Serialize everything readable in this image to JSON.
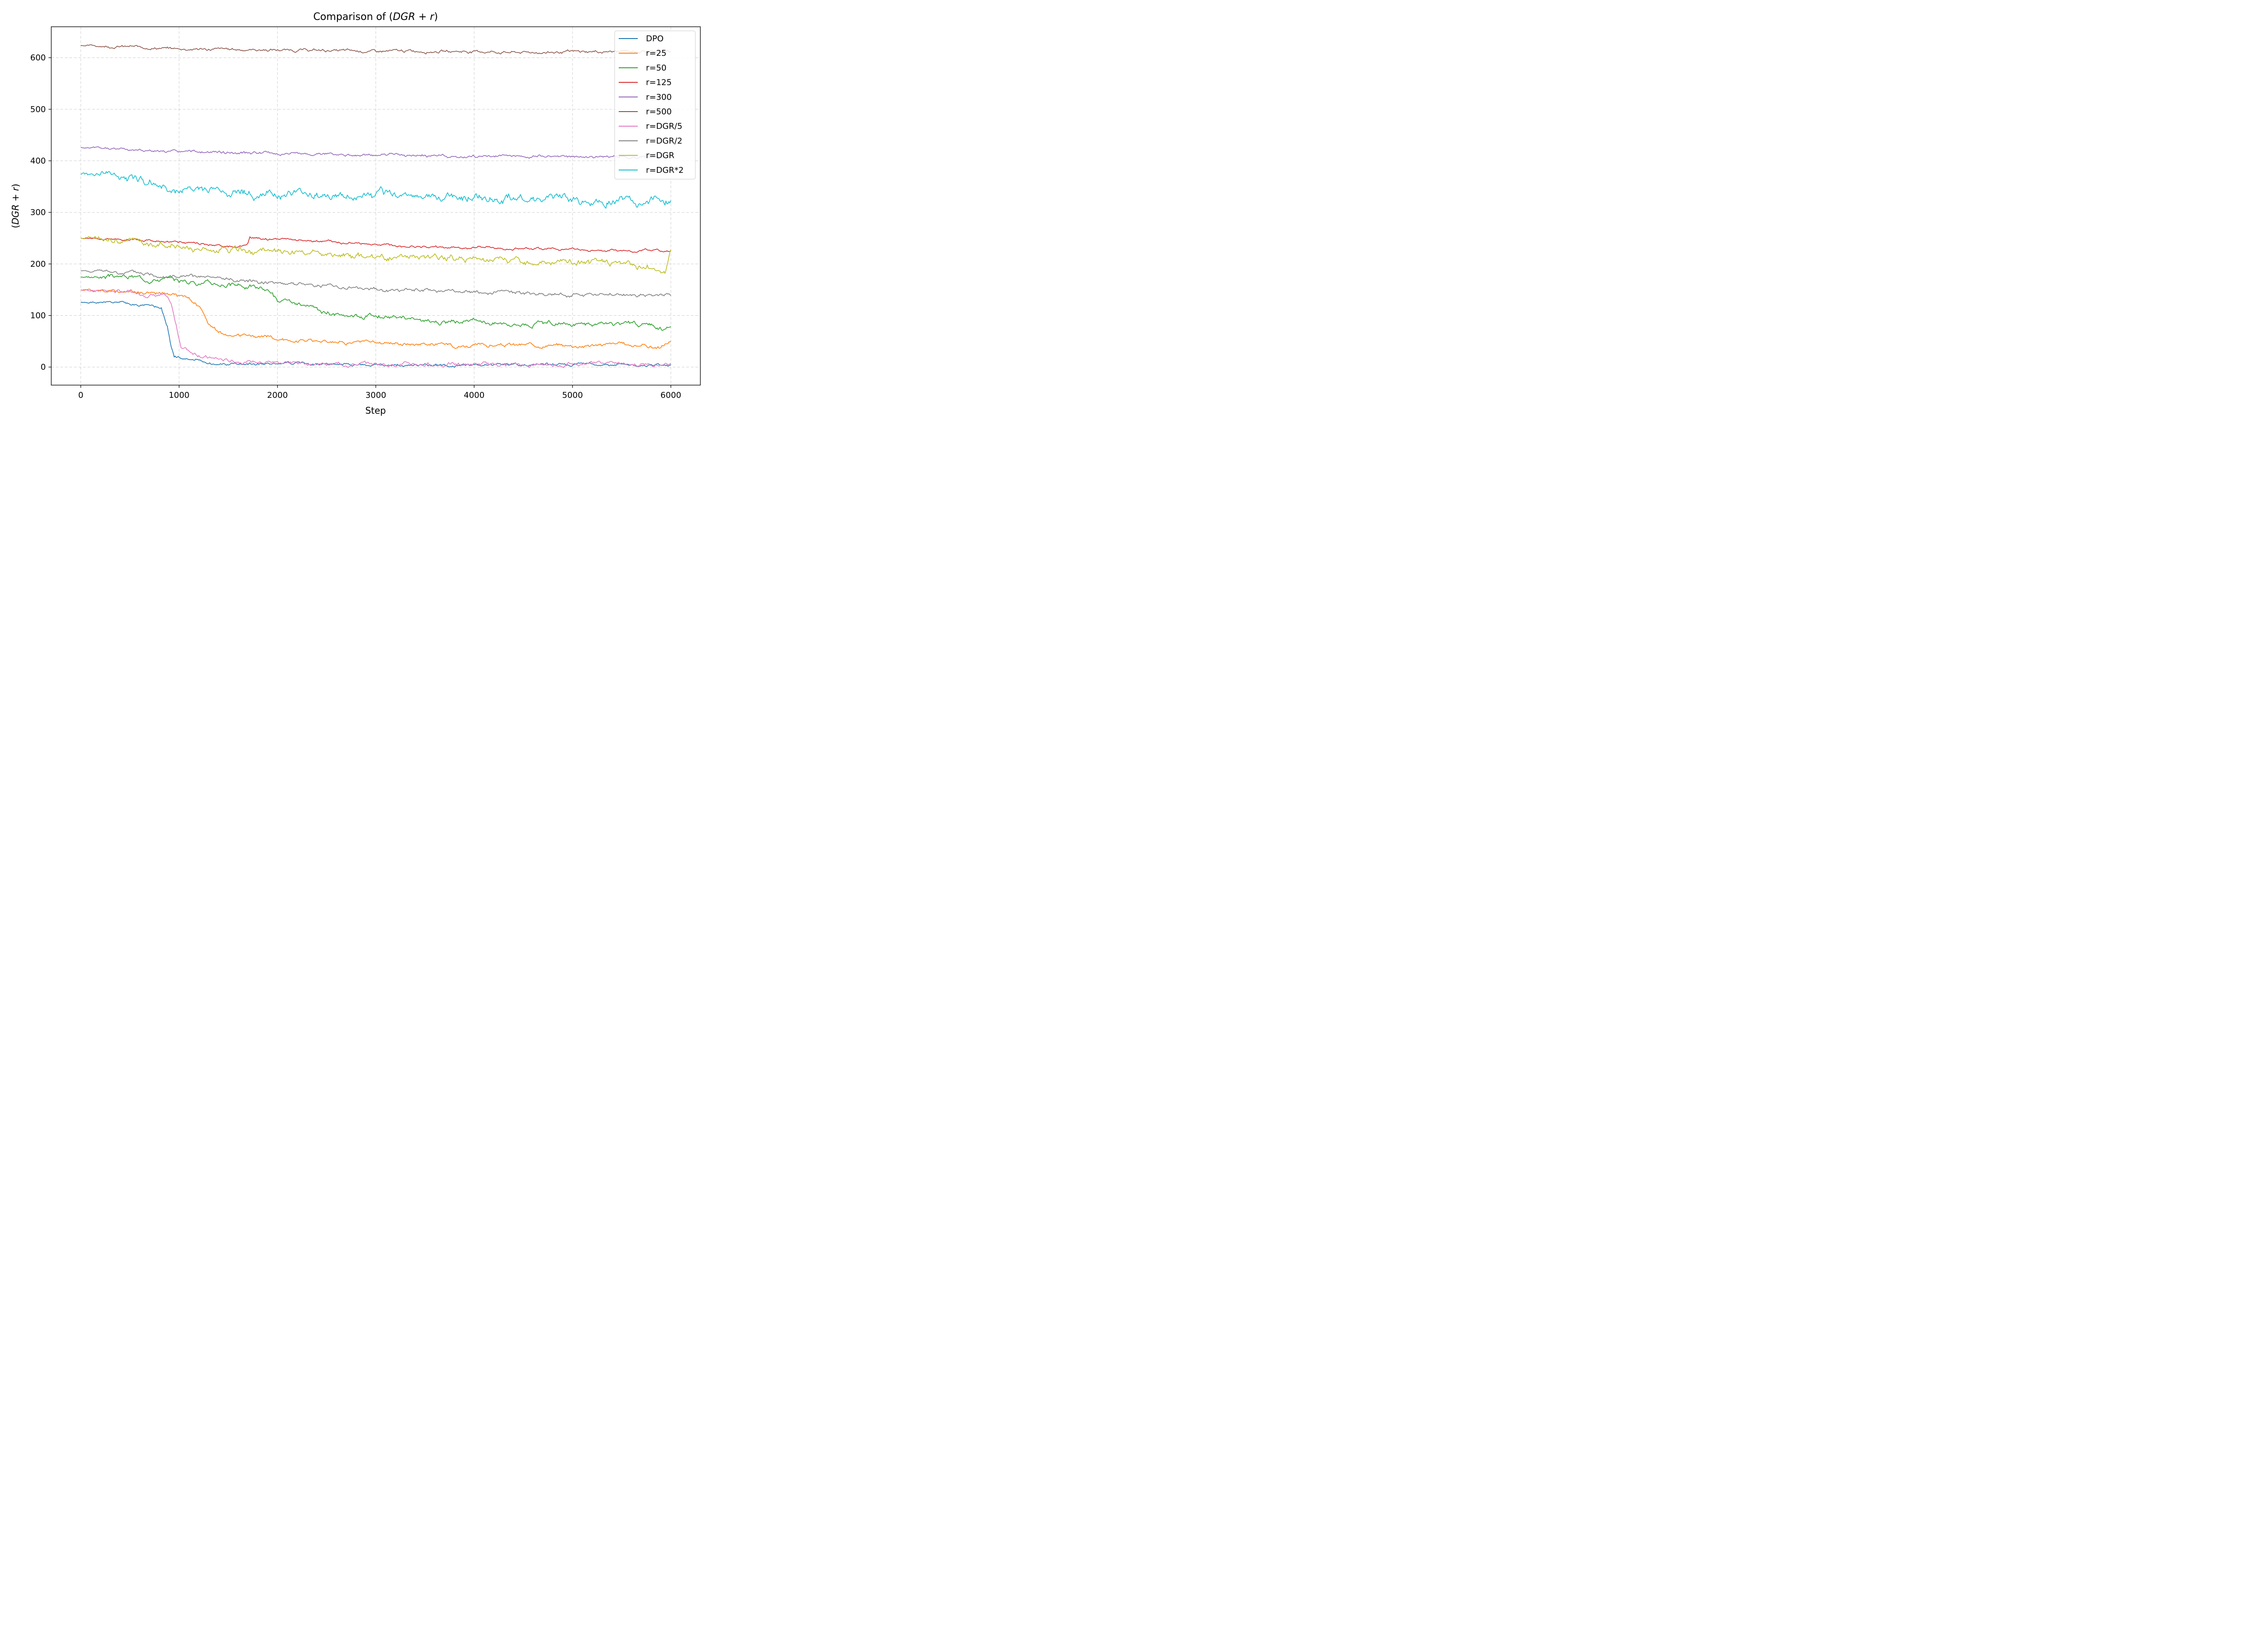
{
  "chart_data": {
    "type": "line",
    "title": "Comparison of (DGR + r)",
    "title_parts": [
      "Comparison of ",
      "(",
      "DGR",
      " + ",
      "r",
      ")"
    ],
    "xlabel": "Step",
    "ylabel_parts": [
      "(",
      "DGR",
      " + ",
      "r",
      ")"
    ],
    "xlim": [
      -300,
      6300
    ],
    "ylim": [
      -35,
      660
    ],
    "xticks": [
      0,
      1000,
      2000,
      3000,
      4000,
      5000,
      6000
    ],
    "yticks": [
      0,
      100,
      200,
      300,
      400,
      500,
      600
    ],
    "grid": true,
    "legend_position": "top-right",
    "series": [
      {
        "name": "DPO",
        "color": "#1f77b4",
        "noise": 3,
        "seed": 1,
        "x": [
          0,
          300,
          500,
          700,
          820,
          880,
          920,
          950,
          1000,
          1100,
          1200,
          1300,
          1500,
          2000,
          2500,
          3000,
          3500,
          4000,
          4500,
          4700,
          5000,
          5200,
          5500,
          6000
        ],
        "y": [
          125,
          124,
          122,
          120,
          112,
          80,
          40,
          20,
          18,
          15,
          12,
          8,
          5,
          8,
          4,
          3,
          3,
          4,
          3,
          6,
          4,
          7,
          4,
          2
        ]
      },
      {
        "name": "r=25",
        "color": "#ff7f0e",
        "noise": 4,
        "seed": 2,
        "x": [
          0,
          500,
          900,
          1100,
          1200,
          1300,
          1400,
          1500,
          1600,
          2000,
          2500,
          3000,
          3500,
          4000,
          4500,
          5000,
          5500,
          5900,
          6000
        ],
        "y": [
          150,
          148,
          140,
          135,
          118,
          85,
          68,
          58,
          62,
          55,
          50,
          48,
          45,
          42,
          43,
          42,
          45,
          38,
          52
        ]
      },
      {
        "name": "r=50",
        "color": "#2ca02c",
        "noise": 5,
        "seed": 3,
        "x": [
          0,
          500,
          1000,
          1500,
          1800,
          1950,
          2000,
          2200,
          2400,
          2500,
          3000,
          3500,
          4000,
          4500,
          5000,
          5500,
          5950,
          6000
        ],
        "y": [
          175,
          175,
          168,
          160,
          155,
          145,
          128,
          120,
          110,
          103,
          100,
          90,
          88,
          85,
          83,
          85,
          75,
          78
        ]
      },
      {
        "name": "r=125",
        "color": "#d62728",
        "noise": 2.5,
        "seed": 4,
        "x": [
          0,
          500,
          1000,
          1400,
          1600,
          1700,
          1720,
          2000,
          2500,
          3000,
          3500,
          4000,
          4500,
          5000,
          5500,
          6000
        ],
        "y": [
          250,
          248,
          242,
          235,
          232,
          238,
          250,
          248,
          242,
          238,
          233,
          232,
          230,
          228,
          226,
          226
        ]
      },
      {
        "name": "r=300",
        "color": "#9467bd",
        "noise": 3,
        "seed": 5,
        "x": [
          0,
          500,
          1000,
          1500,
          2000,
          2500,
          3000,
          3500,
          4000,
          4500,
          5000,
          5500,
          6000
        ],
        "y": [
          425,
          422,
          417,
          416,
          414,
          413,
          412,
          410,
          409,
          408,
          408,
          409,
          407
        ]
      },
      {
        "name": "r=500",
        "color": "#8c564b",
        "noise": 3,
        "seed": 6,
        "x": [
          0,
          500,
          1000,
          1500,
          2000,
          2500,
          3000,
          3500,
          4000,
          4500,
          5000,
          5500,
          6000
        ],
        "y": [
          624,
          621,
          617,
          616,
          615,
          614,
          612,
          613,
          612,
          610,
          611,
          612,
          612
        ]
      },
      {
        "name": "r=DGR/5",
        "color": "#e377c2",
        "noise": 4,
        "seed": 7,
        "x": [
          0,
          300,
          600,
          850,
          920,
          980,
          1020,
          1100,
          1200,
          1300,
          1500,
          2000,
          2500,
          3000,
          3500,
          4000,
          4500,
          5000,
          5200,
          5500,
          6000
        ],
        "y": [
          150,
          148,
          143,
          138,
          120,
          70,
          40,
          32,
          25,
          18,
          12,
          10,
          6,
          6,
          5,
          5,
          4,
          6,
          10,
          6,
          6
        ]
      },
      {
        "name": "r=DGR/2",
        "color": "#7f7f7f",
        "noise": 4,
        "seed": 8,
        "x": [
          0,
          500,
          1000,
          1500,
          2000,
          2500,
          3000,
          3500,
          4000,
          4500,
          5000,
          5500,
          6000
        ],
        "y": [
          187,
          183,
          175,
          170,
          165,
          158,
          150,
          148,
          145,
          143,
          141,
          140,
          138
        ]
      },
      {
        "name": "r=DGR",
        "color": "#bcbd22",
        "noise": 7,
        "seed": 9,
        "x": [
          0,
          500,
          1000,
          1500,
          2000,
          2500,
          3000,
          3500,
          4000,
          4500,
          5000,
          5500,
          5950,
          6000
        ],
        "y": [
          250,
          245,
          232,
          225,
          222,
          218,
          215,
          212,
          210,
          206,
          203,
          203,
          190,
          225
        ]
      },
      {
        "name": "r=DGR*2",
        "color": "#17becf",
        "noise": 9,
        "seed": 10,
        "x": [
          0,
          300,
          500,
          800,
          900,
          1000,
          1500,
          2000,
          2500,
          2750,
          3000,
          3500,
          4000,
          4500,
          5000,
          5500,
          6000
        ],
        "y": [
          375,
          375,
          368,
          355,
          340,
          345,
          340,
          335,
          333,
          323,
          333,
          332,
          330,
          327,
          325,
          325,
          322
        ]
      }
    ]
  }
}
